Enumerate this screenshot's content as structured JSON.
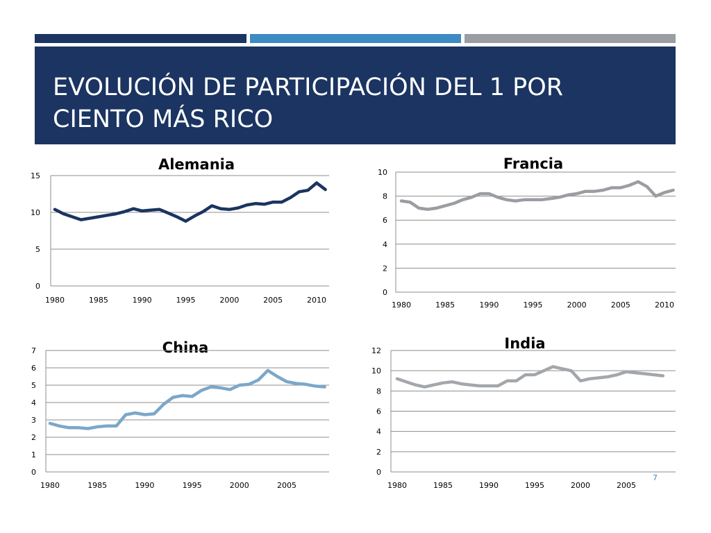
{
  "slide": {
    "title": "EVOLUCIÓN DE PARTICIPACIÓN DEL 1 POR CIENTO MÁS RICO",
    "page_number": "7",
    "colors": {
      "header_bg": "#1b3461",
      "bar_dark": "#1b3461",
      "bar_blue": "#3e8ac4",
      "bar_gray": "#9a9da1"
    }
  },
  "chart_data": [
    {
      "id": "alemania",
      "type": "line",
      "title": "Alemania",
      "color": "#1b3461",
      "x_ticks": [
        1980,
        1985,
        1990,
        1995,
        2000,
        2005,
        2010
      ],
      "y_ticks": [
        0,
        5,
        10,
        15
      ],
      "xlim": [
        1980,
        2011
      ],
      "ylim": [
        0,
        15
      ],
      "grid": true,
      "x": [
        1980,
        1981,
        1982,
        1983,
        1984,
        1985,
        1986,
        1987,
        1988,
        1989,
        1990,
        1991,
        1992,
        1993,
        1994,
        1995,
        1996,
        1997,
        1998,
        1999,
        2000,
        2001,
        2002,
        2003,
        2004,
        2005,
        2006,
        2007,
        2008,
        2009,
        2010,
        2011
      ],
      "y": [
        10.4,
        9.8,
        9.4,
        9.0,
        9.2,
        9.4,
        9.6,
        9.8,
        10.1,
        10.5,
        10.2,
        10.3,
        10.4,
        9.9,
        9.4,
        8.8,
        9.5,
        10.1,
        10.9,
        10.5,
        10.4,
        10.6,
        11.0,
        11.2,
        11.1,
        11.4,
        11.4,
        12.0,
        12.8,
        13.0,
        14.0,
        13.1
      ]
    },
    {
      "id": "francia",
      "type": "line",
      "title": "Francia",
      "color": "#9a9da1",
      "x_ticks": [
        1980,
        1985,
        1990,
        1995,
        2000,
        2005,
        2010
      ],
      "y_ticks": [
        0,
        2,
        4,
        6,
        8,
        10
      ],
      "xlim": [
        1980,
        2011
      ],
      "ylim": [
        0,
        10
      ],
      "grid": true,
      "x": [
        1980,
        1981,
        1982,
        1983,
        1984,
        1985,
        1986,
        1987,
        1988,
        1989,
        1990,
        1991,
        1992,
        1993,
        1994,
        1995,
        1996,
        1997,
        1998,
        1999,
        2000,
        2001,
        2002,
        2003,
        2004,
        2005,
        2006,
        2007,
        2008,
        2009,
        2010,
        2011
      ],
      "y": [
        7.6,
        7.5,
        7.0,
        6.9,
        7.0,
        7.2,
        7.4,
        7.7,
        7.9,
        8.2,
        8.2,
        7.9,
        7.7,
        7.6,
        7.7,
        7.7,
        7.7,
        7.8,
        7.9,
        8.1,
        8.2,
        8.4,
        8.4,
        8.5,
        8.7,
        8.7,
        8.9,
        9.2,
        8.8,
        8.0,
        8.3,
        8.5
      ]
    },
    {
      "id": "china",
      "type": "line",
      "title": "China",
      "color": "#7ba7c9",
      "x_ticks": [
        1980,
        1985,
        1990,
        1995,
        2000,
        2005
      ],
      "y_ticks": [
        0,
        1,
        2,
        3,
        4,
        5,
        6,
        7
      ],
      "xlim": [
        1980,
        2009
      ],
      "ylim": [
        0,
        7
      ],
      "grid": true,
      "x": [
        1980,
        1981,
        1982,
        1983,
        1984,
        1985,
        1986,
        1987,
        1988,
        1989,
        1990,
        1991,
        1992,
        1993,
        1994,
        1995,
        1996,
        1997,
        1998,
        1999,
        2000,
        2001,
        2002,
        2003,
        2004,
        2005,
        2006,
        2007,
        2008,
        2009
      ],
      "y": [
        2.8,
        2.65,
        2.55,
        2.55,
        2.5,
        2.6,
        2.65,
        2.65,
        3.3,
        3.4,
        3.3,
        3.35,
        3.9,
        4.3,
        4.4,
        4.35,
        4.7,
        4.9,
        4.85,
        4.75,
        5.0,
        5.05,
        5.3,
        5.85,
        5.5,
        5.2,
        5.1,
        5.05,
        4.95,
        4.9
      ]
    },
    {
      "id": "india",
      "type": "line",
      "title": "India",
      "color": "#a3a7ab",
      "x_ticks": [
        1980,
        1985,
        1990,
        1995,
        2000,
        2005
      ],
      "y_ticks": [
        0,
        2,
        4,
        6,
        8,
        10,
        12
      ],
      "xlim": [
        1980,
        2009
      ],
      "ylim": [
        0,
        12
      ],
      "grid": true,
      "x": [
        1980,
        1981,
        1982,
        1983,
        1984,
        1985,
        1986,
        1987,
        1988,
        1989,
        1990,
        1991,
        1992,
        1993,
        1994,
        1995,
        1996,
        1997,
        1998,
        1999,
        2000,
        2001,
        2002,
        2003,
        2004,
        2005,
        2006,
        2007,
        2008,
        2009
      ],
      "y": [
        9.2,
        8.9,
        8.6,
        8.4,
        8.6,
        8.8,
        8.9,
        8.7,
        8.6,
        8.5,
        8.5,
        8.5,
        9.0,
        9.0,
        9.6,
        9.6,
        10.0,
        10.4,
        10.2,
        10.0,
        9.0,
        9.2,
        9.3,
        9.4,
        9.6,
        9.9,
        9.8,
        9.7,
        9.6,
        9.5
      ]
    }
  ]
}
